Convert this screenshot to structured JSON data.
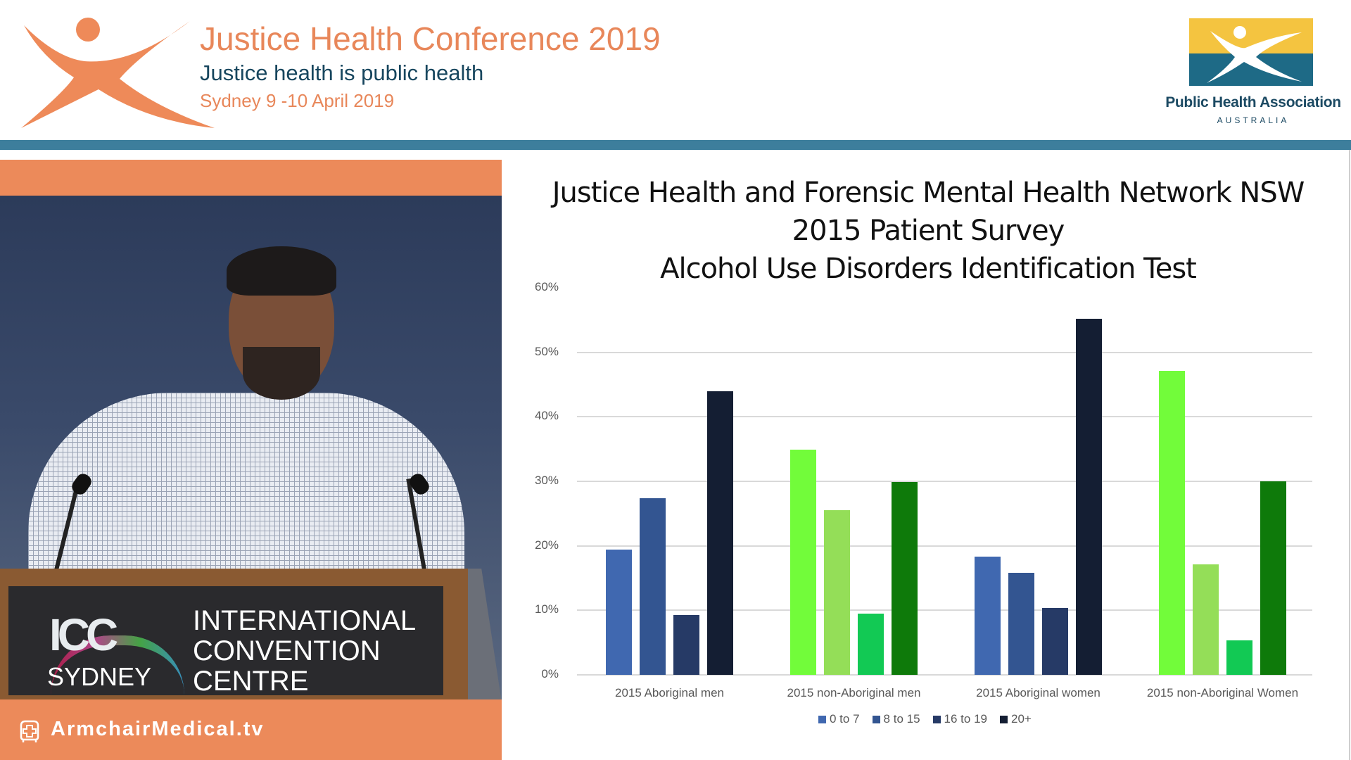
{
  "header": {
    "conference_title": "Justice Health Conference 2019",
    "tagline": "Justice health is public health",
    "dates": "Sydney 9 -10 April 2019",
    "partner_name": "Public Health Association",
    "partner_country": "AUSTRALIA",
    "colors": {
      "orange": "#e8875a",
      "navy": "#17465e",
      "band": "#3d7e9c",
      "gold": "#f4c440",
      "teal": "#1e6a86"
    }
  },
  "video": {
    "podium_city": "SYDNEY",
    "podium_mark": "ICC",
    "podium_name": "INTERNATIONAL CONVENTION CENTRE",
    "podium_lines": [
      "INTERNATIONAL",
      "CONVENTION",
      "CENTRE"
    ],
    "watermark": "ArmchairMedical.tv",
    "colors": {
      "orange": "#ec8a5a"
    }
  },
  "slide": {
    "title_lines": [
      "Justice Health and Forensic Mental Health Network NSW",
      "2015 Patient Survey",
      "Alcohol Use Disorders Identification Test"
    ]
  },
  "chart_data": {
    "type": "bar",
    "title": "Justice Health and Forensic Mental Health Network NSW 2015 Patient Survey Alcohol Use Disorders Identification Test",
    "xlabel": "",
    "ylabel": "",
    "ylim": [
      0,
      60
    ],
    "yticks": [
      "0%",
      "10%",
      "20%",
      "30%",
      "40%",
      "50%",
      "60%"
    ],
    "grid": true,
    "legend_position": "bottom",
    "categories": [
      "2015 Aboriginal men",
      "2015 non-Aboriginal men",
      "2015 Aboriginal women",
      "2015 non-Aboriginal Women"
    ],
    "series": [
      {
        "name": "0 to 7",
        "legend_color": "#4068b0",
        "values": [
          19.4,
          34.9,
          18.3,
          47.1
        ]
      },
      {
        "name": "8 to 15",
        "legend_color": "#335591",
        "values": [
          27.4,
          25.5,
          15.8,
          17.1
        ]
      },
      {
        "name": "16 to 19",
        "legend_color": "#263a66",
        "values": [
          9.3,
          9.5,
          10.4,
          5.3
        ]
      },
      {
        "name": "20+",
        "legend_color": "#141e33",
        "values": [
          44.0,
          29.9,
          55.2,
          30.0
        ]
      }
    ],
    "bar_colors": [
      [
        "#4068b0",
        "#335591",
        "#263a66",
        "#141e33"
      ],
      [
        "#72fc3a",
        "#94de58",
        "#12c954",
        "#0e7a0a"
      ],
      [
        "#4068b0",
        "#335591",
        "#263a66",
        "#141e33"
      ],
      [
        "#72fc3a",
        "#94de58",
        "#12c954",
        "#0e7a0a"
      ]
    ],
    "units": "%"
  }
}
